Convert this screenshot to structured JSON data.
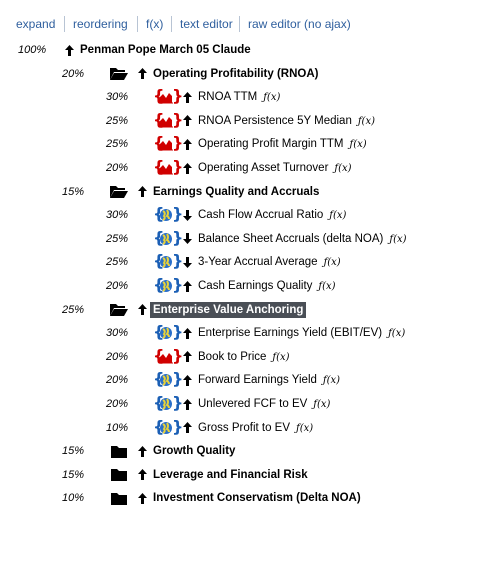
{
  "toolbar": {
    "links": [
      "expand",
      "reordering",
      "f(x)",
      "text editor",
      "raw editor (no ajax)"
    ]
  },
  "tree": {
    "root": {
      "weight": "100%",
      "arrow": "up",
      "label": "Penman Pope March 05 Claude"
    },
    "groups": [
      {
        "weight": "20%",
        "folder": "open",
        "arrow": "up",
        "label": "Operating Profitability (RNOA)",
        "highlight": false,
        "items": [
          {
            "weight": "30%",
            "icon": "chart",
            "arrow": "up",
            "label": "RNOA TTM",
            "fx": "ƒ(x)"
          },
          {
            "weight": "25%",
            "icon": "chart",
            "arrow": "up",
            "label": "RNOA Persistence 5Y Median",
            "fx": "ƒ(x)"
          },
          {
            "weight": "25%",
            "icon": "chart",
            "arrow": "up",
            "label": "Operating Profit Margin TTM",
            "fx": "ƒ(x)"
          },
          {
            "weight": "20%",
            "icon": "chart",
            "arrow": "up",
            "label": "Operating Asset Turnover",
            "fx": "ƒ(x)"
          }
        ]
      },
      {
        "weight": "15%",
        "folder": "open",
        "arrow": "up",
        "label": "Earnings Quality and Accruals",
        "highlight": false,
        "items": [
          {
            "weight": "30%",
            "icon": "globe",
            "arrow": "down",
            "label": "Cash Flow Accrual Ratio",
            "fx": "ƒ(x)"
          },
          {
            "weight": "25%",
            "icon": "globe",
            "arrow": "down",
            "label": "Balance Sheet Accruals (delta NOA)",
            "fx": "ƒ(x)"
          },
          {
            "weight": "25%",
            "icon": "globe",
            "arrow": "down",
            "label": "3-Year Accrual Average",
            "fx": "ƒ(x)"
          },
          {
            "weight": "20%",
            "icon": "globe",
            "arrow": "up",
            "label": "Cash Earnings Quality",
            "fx": "ƒ(x)"
          }
        ]
      },
      {
        "weight": "25%",
        "folder": "open",
        "arrow": "up",
        "label": "Enterprise Value Anchoring",
        "highlight": true,
        "items": [
          {
            "weight": "30%",
            "icon": "globe",
            "arrow": "up",
            "label": "Enterprise Earnings Yield (EBIT/EV)",
            "fx": "ƒ(x)"
          },
          {
            "weight": "20%",
            "icon": "chart",
            "arrow": "up",
            "label": "Book to Price",
            "fx": "ƒ(x)"
          },
          {
            "weight": "20%",
            "icon": "globe",
            "arrow": "up",
            "label": "Forward Earnings Yield",
            "fx": "ƒ(x)"
          },
          {
            "weight": "20%",
            "icon": "globe",
            "arrow": "up",
            "label": "Unlevered FCF to EV",
            "fx": "ƒ(x)"
          },
          {
            "weight": "10%",
            "icon": "globe",
            "arrow": "up",
            "label": "Gross Profit to EV",
            "fx": "ƒ(x)"
          }
        ]
      },
      {
        "weight": "15%",
        "folder": "closed",
        "arrow": "up",
        "label": "Growth Quality",
        "highlight": false,
        "items": []
      },
      {
        "weight": "15%",
        "folder": "closed",
        "arrow": "up",
        "label": "Leverage and Financial Risk",
        "highlight": false,
        "items": []
      },
      {
        "weight": "10%",
        "folder": "closed",
        "arrow": "up",
        "label": "Investment Conservatism (Delta NOA)",
        "highlight": false,
        "items": []
      }
    ]
  }
}
